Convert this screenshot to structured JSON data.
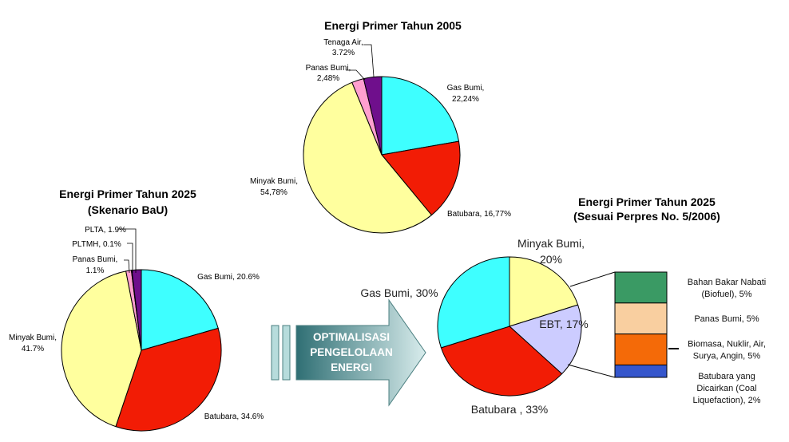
{
  "colors": {
    "gas": "#3EFFFF",
    "batubara": "#F21C05",
    "minyak": "#FFFF9E",
    "panas": "#FF9FCF",
    "tenaga_air": "#6F0F8C",
    "ebt": "#CCCCFF",
    "biofuel": "#3A9A64",
    "panas_stack": "#F9CFA0",
    "biomasa": "#F46A08",
    "coal_liq": "#3556CC"
  },
  "arrow": {
    "line1": "OPTIMALISASI",
    "line2": "PENGELOLAAN",
    "line3": "ENERGI"
  },
  "ebt_breakdown": [
    {
      "label_lines": [
        "Bahan Bakar Nabati",
        "(Biofuel), 5%"
      ],
      "value": 5,
      "color_key": "biofuel"
    },
    {
      "label_lines": [
        "Panas Bumi, 5%"
      ],
      "value": 5,
      "color_key": "panas_stack"
    },
    {
      "label_lines": [
        "Biomasa, Nuklir, Air,",
        "Surya, Angin, 5%"
      ],
      "value": 5,
      "color_key": "biomasa"
    },
    {
      "label_lines": [
        "Batubara yang",
        "Dicairkan (Coal",
        "Liquefaction), 2%"
      ],
      "value": 2,
      "color_key": "coal_liq"
    }
  ],
  "chart_data": [
    {
      "type": "pie",
      "title": "Energi Primer Tahun 2005",
      "start_angle_deg": 0,
      "slices": [
        {
          "label": "Gas Bumi,",
          "label2": "22,24%",
          "value": 22.24,
          "color_key": "gas"
        },
        {
          "label": "Batubara, 16,77%",
          "label2": "",
          "value": 16.77,
          "color_key": "batubara"
        },
        {
          "label": "Minyak Bumi,",
          "label2": "54,78%",
          "value": 54.78,
          "color_key": "minyak"
        },
        {
          "label": "Panas Bumi,",
          "label2": "2,48%",
          "value": 2.48,
          "color_key": "panas"
        },
        {
          "label": "Tenaga Air,",
          "label2": "3.72%",
          "value": 3.72,
          "color_key": "tenaga_air"
        }
      ]
    },
    {
      "type": "pie",
      "title": "Energi Primer Tahun 2025",
      "subtitle": "(Skenario BaU)",
      "start_angle_deg": 0,
      "slices": [
        {
          "label": "Gas Bumi, 20.6%",
          "label2": "",
          "value": 20.6,
          "color_key": "gas"
        },
        {
          "label": "Batubara, 34.6%",
          "label2": "",
          "value": 34.6,
          "color_key": "batubara"
        },
        {
          "label": "Minyak Bumi,",
          "label2": "41.7%",
          "value": 41.7,
          "color_key": "minyak"
        },
        {
          "label": "Panas Bumi,",
          "label2": "1.1%",
          "value": 1.1,
          "color_key": "panas"
        },
        {
          "label": "PLTMH, 0.1%",
          "label2": "",
          "value": 0.1,
          "color_key": "tenaga_air"
        },
        {
          "label": "PLTA, 1.9%",
          "label2": "",
          "value": 1.9,
          "color_key": "tenaga_air"
        }
      ]
    },
    {
      "type": "pie",
      "title": "Energi Primer Tahun 2025",
      "subtitle": "(Sesuai Perpres No. 5/2006)",
      "start_angle_deg": 0,
      "slices": [
        {
          "label": "Minyak Bumi,",
          "label2": "20%",
          "value": 20,
          "color_key": "minyak"
        },
        {
          "label": "EBT, 17%",
          "label2": "",
          "value": 17,
          "color_key": "ebt"
        },
        {
          "label": "Batubara , 33%",
          "label2": "",
          "value": 33,
          "color_key": "batubara"
        },
        {
          "label": "Gas Bumi, 30%",
          "label2": "",
          "value": 30,
          "color_key": "gas"
        }
      ]
    }
  ]
}
